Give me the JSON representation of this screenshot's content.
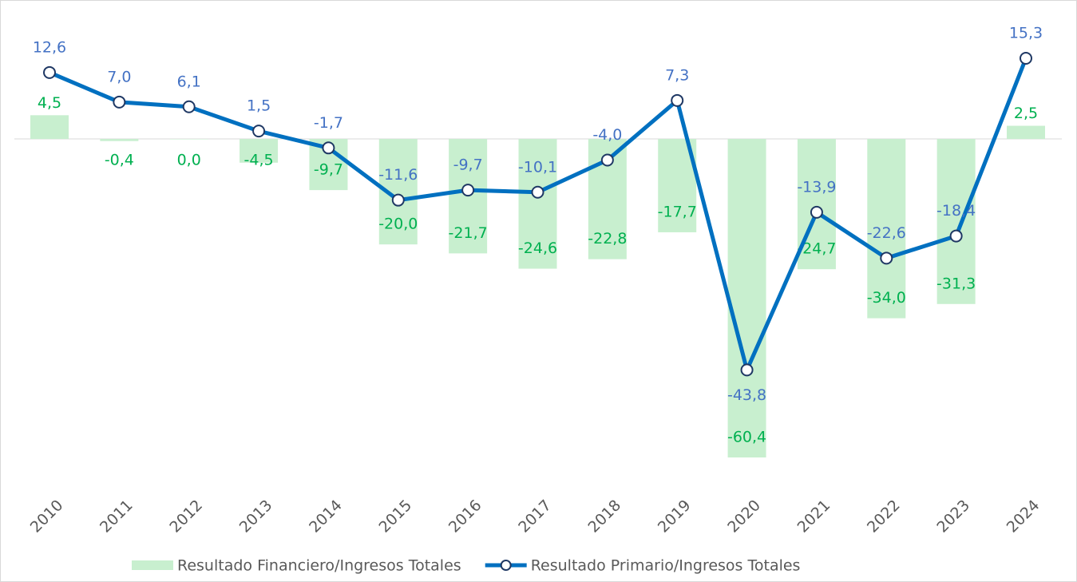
{
  "chart_data": {
    "type": "bar-line",
    "categories": [
      "2010",
      "2011",
      "2012",
      "2013",
      "2014",
      "2015",
      "2016",
      "2017",
      "2018",
      "2019",
      "2020",
      "2021",
      "2022",
      "2023",
      "2024"
    ],
    "series": [
      {
        "name": "Resultado Financiero/Ingresos Totales",
        "type": "bar",
        "color": "#c8efcf",
        "label_color": "#00b050",
        "values": [
          4.5,
          -0.4,
          0.0,
          -4.5,
          -9.7,
          -20.0,
          -21.7,
          -24.6,
          -22.8,
          -17.7,
          -60.4,
          -24.7,
          -34.0,
          -31.3,
          2.5
        ],
        "value_labels": [
          "4,5",
          "-0,4",
          "0,0",
          "-4,5",
          "-9,7",
          "-20,0",
          "-21,7",
          "-24,6",
          "-22,8",
          "-17,7",
          "-60,4",
          "-24,7",
          "-34,0",
          "-31,3",
          "2,5"
        ]
      },
      {
        "name": "Resultado Primario/Ingresos Totales",
        "type": "line",
        "color": "#0070c0",
        "label_color": "#4472c4",
        "values": [
          12.6,
          7.0,
          6.1,
          1.5,
          -1.7,
          -11.6,
          -9.7,
          -10.1,
          -4.0,
          7.3,
          -43.8,
          -13.9,
          -22.6,
          -18.4,
          15.3
        ],
        "value_labels": [
          "12,6",
          "7,0",
          "6,1",
          "1,5",
          "-1,7",
          "-11,6",
          "-9,7",
          "-10,1",
          "-4,0",
          "7,3",
          "-43,8",
          "-13,9",
          "-22,6",
          "-18,4",
          "15,3"
        ]
      }
    ],
    "legend": "bottom"
  }
}
